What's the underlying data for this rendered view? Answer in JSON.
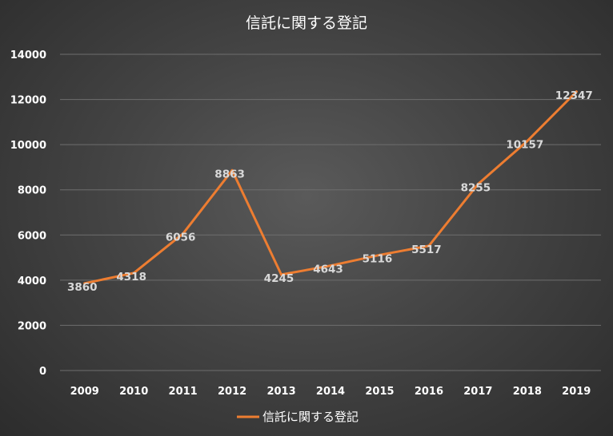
{
  "chart_data": {
    "type": "line",
    "title": "信託に関する登記",
    "categories": [
      "2009",
      "2010",
      "2011",
      "2012",
      "2013",
      "2014",
      "2015",
      "2016",
      "2017",
      "2018",
      "2019"
    ],
    "series": [
      {
        "name": "信託に関する登記",
        "values": [
          3860,
          4318,
          6056,
          8863,
          4245,
          4643,
          5116,
          5517,
          8255,
          10157,
          12347
        ]
      }
    ],
    "ylim": [
      0,
      14000
    ],
    "yticks": [
      0,
      2000,
      4000,
      6000,
      8000,
      10000,
      12000,
      14000
    ],
    "grid": true,
    "legend": "bottom",
    "colors": {
      "series": "#ed7d31",
      "background": "#404040",
      "grid": "#6e6e6e"
    }
  }
}
